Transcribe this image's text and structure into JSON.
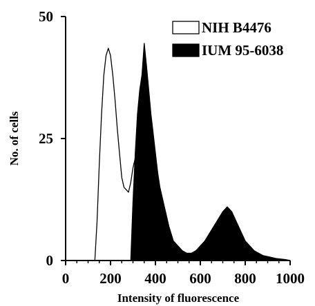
{
  "chart_data": {
    "type": "area",
    "xlabel": "Intensity of fluorescence",
    "ylabel": "No. of cells",
    "xlim": [
      0,
      1000
    ],
    "ylim": [
      0,
      50
    ],
    "xticks": [
      "0",
      "200",
      "400",
      "600",
      "800",
      "1000"
    ],
    "yticks": [
      "0",
      "25",
      "50"
    ],
    "legend_position": "top-right",
    "grid": false,
    "series": [
      {
        "name": "NIH B4476",
        "fill": "#ffffff",
        "stroke": "#000000",
        "x": [
          130,
          140,
          150,
          160,
          170,
          180,
          190,
          200,
          210,
          220,
          230,
          240,
          250,
          260,
          270,
          280,
          290,
          300,
          310,
          320,
          330,
          340,
          350,
          360,
          370,
          380,
          390,
          400,
          420,
          440,
          460,
          480,
          500
        ],
        "y": [
          0,
          8,
          20,
          30,
          38,
          42,
          43.5,
          42,
          38,
          33,
          27,
          22,
          17,
          15,
          14.5,
          14,
          16,
          19,
          21,
          17,
          12,
          7,
          4,
          2.5,
          1.5,
          1,
          0.8,
          0.5,
          0.3,
          0.2,
          0.1,
          0,
          0
        ]
      },
      {
        "name": "IUM 95-6038",
        "fill": "#000000",
        "stroke": "#000000",
        "x": [
          290,
          300,
          310,
          320,
          330,
          340,
          350,
          360,
          370,
          380,
          390,
          400,
          410,
          420,
          440,
          460,
          480,
          500,
          520,
          540,
          560,
          580,
          600,
          620,
          640,
          660,
          680,
          700,
          720,
          740,
          760,
          780,
          800,
          820,
          840,
          860,
          880,
          900,
          920,
          940,
          960,
          980,
          1000
        ],
        "y": [
          0,
          12,
          22,
          30,
          35,
          38,
          44.5,
          40,
          35,
          30,
          26,
          22,
          18,
          15,
          11,
          7,
          4,
          3,
          2,
          1.5,
          1.5,
          2,
          3,
          4,
          5.5,
          7,
          8.5,
          10,
          11,
          10,
          8,
          6,
          4,
          3,
          2,
          1.5,
          1,
          0.8,
          0.6,
          0.4,
          0.3,
          0.2,
          0
        ]
      }
    ]
  }
}
